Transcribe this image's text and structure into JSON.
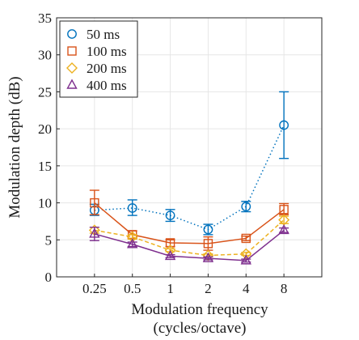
{
  "chart_data": {
    "type": "line",
    "xlabel": "Modulation frequency",
    "xlabel_line2": "(cycles/octave)",
    "ylabel": "Modulation depth (dB)",
    "x": [
      0.25,
      0.5,
      1,
      2,
      4,
      8
    ],
    "x_tick_labels": [
      "0.25",
      "0.5",
      "1",
      "2",
      "4",
      "8"
    ],
    "x_scale": "log2",
    "ylim": [
      0,
      35
    ],
    "y_ticks": [
      0,
      5,
      10,
      15,
      20,
      25,
      30,
      35
    ],
    "y_tick_labels": [
      "0",
      "5",
      "10",
      "15",
      "20",
      "25",
      "30",
      "35"
    ],
    "grid": true,
    "legend_position": "top-left",
    "series": [
      {
        "name": "50 ms",
        "color": "#0072BD",
        "marker": "circle",
        "line_style": "dotted",
        "values": [
          9.0,
          9.3,
          8.3,
          6.4,
          9.5,
          20.5
        ],
        "err_low": [
          8.3,
          8.3,
          7.5,
          5.7,
          8.8,
          16.0
        ],
        "err_high": [
          9.8,
          10.4,
          9.1,
          7.1,
          10.2,
          25.0
        ]
      },
      {
        "name": "100 ms",
        "color": "#D95319",
        "marker": "square",
        "line_style": "solid",
        "values": [
          10.0,
          5.7,
          4.6,
          4.5,
          5.2,
          9.1
        ],
        "err_low": [
          8.4,
          5.2,
          4.1,
          3.6,
          4.9,
          8.4
        ],
        "err_high": [
          11.7,
          6.2,
          5.0,
          5.4,
          5.5,
          9.9
        ]
      },
      {
        "name": "200 ms",
        "color": "#EDB120",
        "marker": "diamond",
        "line_style": "dashed",
        "values": [
          6.3,
          5.4,
          3.6,
          2.9,
          3.1,
          7.7
        ],
        "err_low": [
          5.9,
          5.1,
          3.4,
          2.7,
          2.9,
          7.2
        ],
        "err_high": [
          6.7,
          5.7,
          3.8,
          3.1,
          3.3,
          8.2
        ]
      },
      {
        "name": "400 ms",
        "color": "#7E2F8E",
        "marker": "triangle",
        "line_style": "solid",
        "values": [
          5.8,
          4.4,
          2.8,
          2.5,
          2.2,
          6.3
        ],
        "err_low": [
          4.9,
          4.1,
          2.6,
          2.3,
          2.0,
          6.0
        ],
        "err_high": [
          6.7,
          4.7,
          3.0,
          2.7,
          2.4,
          6.6
        ]
      }
    ]
  }
}
